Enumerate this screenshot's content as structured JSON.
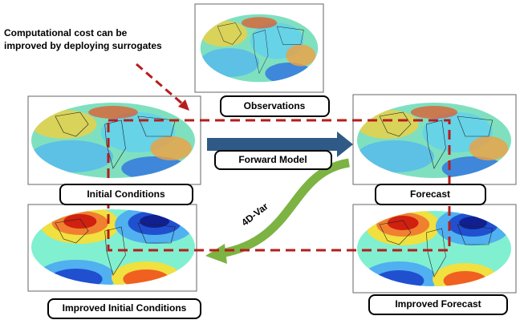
{
  "annotation": {
    "lines": [
      "Computational cost can be",
      "improved by deploying surrogates"
    ]
  },
  "nodes": [
    {
      "label": "Observations"
    },
    {
      "label": "Initial Conditions"
    },
    {
      "label": "Forecast"
    },
    {
      "label": "Improved Initial Conditions"
    },
    {
      "label": "Improved Forecast"
    }
  ],
  "edges": [
    {
      "label": "Forward Model"
    },
    {
      "label": "4D-Var"
    }
  ]
}
